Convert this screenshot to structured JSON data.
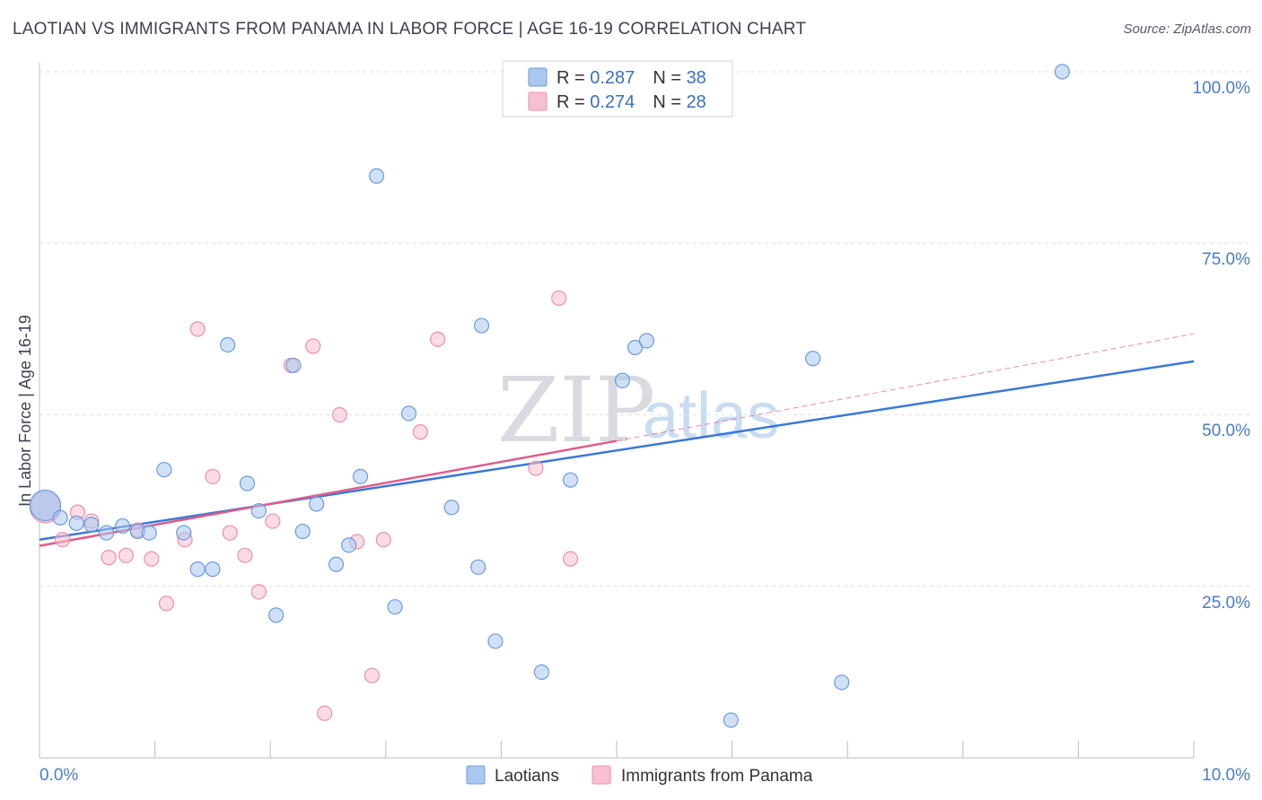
{
  "title": "LAOTIAN VS IMMIGRANTS FROM PANAMA IN LABOR FORCE | AGE 16-19 CORRELATION CHART",
  "source": "Source: ZipAtlas.com",
  "watermark": {
    "zip": "ZIP",
    "atlas": "atlas"
  },
  "colors": {
    "laotian_fill": "#a9c8f0",
    "laotian_stroke": "#6b9be0",
    "laotian_line": "#3a78d6",
    "panama_fill": "#f7bfd0",
    "panama_stroke": "#ec8fae",
    "panama_line": "#e05c8a",
    "tick_text": "#4a7cc9"
  },
  "legend": {
    "rows": [
      {
        "r_label": "R = ",
        "r_value": "0.287",
        "n_label": "N = ",
        "n_value": "38"
      },
      {
        "r_label": "R = ",
        "r_value": "0.274",
        "n_label": "N = ",
        "n_value": "28"
      }
    ]
  },
  "chart_data": {
    "type": "scatter",
    "title": "LAOTIAN VS IMMIGRANTS FROM PANAMA IN LABOR FORCE | AGE 16-19 CORRELATION CHART",
    "xlabel": "",
    "ylabel": "In Labor Force | Age 16-19",
    "xlim": [
      0,
      10
    ],
    "ylim": [
      0,
      105
    ],
    "x_ticks": [
      {
        "value": 0,
        "label": "0.0%"
      },
      {
        "value": 10,
        "label": "10.0%"
      }
    ],
    "y_ticks": [
      {
        "value": 25,
        "label": "25.0%"
      },
      {
        "value": 50,
        "label": "50.0%"
      },
      {
        "value": 75,
        "label": "75.0%"
      },
      {
        "value": 100,
        "label": "100.0%"
      }
    ],
    "series": [
      {
        "name": "Laotians",
        "r": 0.287,
        "n": 38,
        "trend": {
          "x0": 0,
          "y0": 31.8,
          "x1": 10,
          "y1": 57.8
        },
        "points": [
          [
            0.05,
            36.8,
            "large"
          ],
          [
            0.18,
            35.0
          ],
          [
            0.32,
            34.2
          ],
          [
            0.45,
            34.0
          ],
          [
            0.58,
            32.8
          ],
          [
            0.72,
            33.8
          ],
          [
            0.85,
            33.0
          ],
          [
            0.95,
            32.8
          ],
          [
            1.08,
            42.0
          ],
          [
            1.25,
            32.8
          ],
          [
            1.37,
            27.5
          ],
          [
            1.5,
            27.5
          ],
          [
            1.63,
            60.2
          ],
          [
            1.8,
            40.0
          ],
          [
            1.9,
            36.0
          ],
          [
            2.05,
            20.8
          ],
          [
            2.2,
            57.2
          ],
          [
            2.28,
            33.0
          ],
          [
            2.4,
            37.0
          ],
          [
            2.57,
            28.2
          ],
          [
            2.68,
            31.0
          ],
          [
            2.78,
            41.0
          ],
          [
            2.92,
            84.8
          ],
          [
            3.08,
            22.0
          ],
          [
            3.2,
            50.2
          ],
          [
            3.57,
            36.5
          ],
          [
            3.8,
            27.8
          ],
          [
            3.83,
            63.0
          ],
          [
            3.95,
            17.0
          ],
          [
            4.35,
            12.5
          ],
          [
            4.6,
            40.5
          ],
          [
            5.05,
            55.0
          ],
          [
            5.16,
            59.8
          ],
          [
            5.26,
            60.8
          ],
          [
            5.99,
            5.5
          ],
          [
            6.7,
            58.2
          ],
          [
            6.95,
            11.0
          ],
          [
            8.86,
            100.0
          ]
        ]
      },
      {
        "name": "Immigrants from Panama",
        "r": 0.274,
        "n": 28,
        "trend": {
          "x0": 0,
          "y0": 30.9,
          "x1": 5.0,
          "y1": 46.2
        },
        "trend_extension": {
          "x0": 5.0,
          "y0": 46.2,
          "x1": 10,
          "y1": 61.8
        },
        "points": [
          [
            0.05,
            36.5,
            "large"
          ],
          [
            0.2,
            31.8
          ],
          [
            0.33,
            35.8
          ],
          [
            0.45,
            34.5
          ],
          [
            0.6,
            29.2
          ],
          [
            0.75,
            29.5
          ],
          [
            0.85,
            33.2
          ],
          [
            0.97,
            29.0
          ],
          [
            1.1,
            22.5
          ],
          [
            1.26,
            31.8
          ],
          [
            1.37,
            62.5
          ],
          [
            1.5,
            41.0
          ],
          [
            1.65,
            32.8
          ],
          [
            1.78,
            29.5
          ],
          [
            1.9,
            24.2
          ],
          [
            2.02,
            34.5
          ],
          [
            2.18,
            57.2
          ],
          [
            2.37,
            60.0
          ],
          [
            2.47,
            6.5
          ],
          [
            2.6,
            50.0
          ],
          [
            2.75,
            31.5
          ],
          [
            2.88,
            12.0
          ],
          [
            2.98,
            31.8
          ],
          [
            3.3,
            47.5
          ],
          [
            3.45,
            61.0
          ],
          [
            4.3,
            42.2
          ],
          [
            4.5,
            67.0
          ],
          [
            4.6,
            29.0
          ]
        ]
      }
    ]
  },
  "bottom_legend": {
    "items": [
      {
        "label": "Laotians"
      },
      {
        "label": "Immigrants from Panama"
      }
    ]
  }
}
